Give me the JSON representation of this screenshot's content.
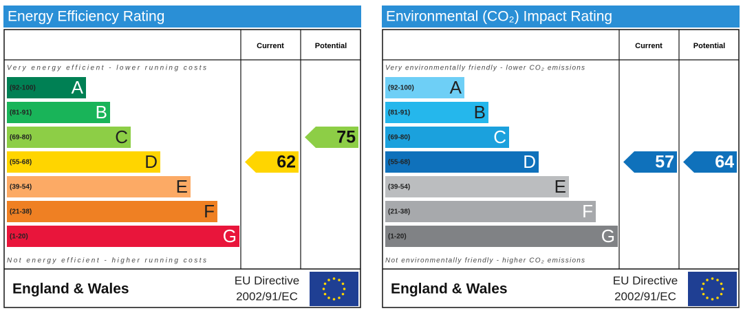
{
  "panels": [
    {
      "title": "Energy Efficiency Rating",
      "header": {
        "current": "Current",
        "potential": "Potential"
      },
      "top_note": "Very energy efficient - lower running costs",
      "bottom_note": "Not energy efficient - higher running costs",
      "bands": [
        {
          "range": "(92-100)",
          "letter": "A",
          "color": "#008054",
          "letter_color": "#ffffff"
        },
        {
          "range": "(81-91)",
          "letter": "B",
          "color": "#19b459",
          "letter_color": "#ffffff"
        },
        {
          "range": "(69-80)",
          "letter": "C",
          "color": "#8dce46",
          "letter_color": "#222222"
        },
        {
          "range": "(55-68)",
          "letter": "D",
          "color": "#ffd500",
          "letter_color": "#222222"
        },
        {
          "range": "(39-54)",
          "letter": "E",
          "color": "#fcaa65",
          "letter_color": "#222222"
        },
        {
          "range": "(21-38)",
          "letter": "F",
          "color": "#ef8023",
          "letter_color": "#222222"
        },
        {
          "range": "(1-20)",
          "letter": "G",
          "color": "#e9153b",
          "letter_color": "#ffffff"
        }
      ],
      "current": 62,
      "potential": 75,
      "arrow_text_color": "#111111",
      "footer": {
        "region": "England & Wales",
        "directive_line1": "EU Directive",
        "directive_line2": "2002/91/EC"
      }
    },
    {
      "title": "Environmental (CO₂) Impact Rating",
      "header": {
        "current": "Current",
        "potential": "Potential"
      },
      "top_note": "Very environmentally friendly - lower CO₂ emissions",
      "bottom_note": "Not environmentally friendly - higher CO₂ emissions",
      "bands": [
        {
          "range": "(92-100)",
          "letter": "A",
          "color": "#6ecff6",
          "letter_color": "#222222"
        },
        {
          "range": "(81-91)",
          "letter": "B",
          "color": "#25b7ec",
          "letter_color": "#222222"
        },
        {
          "range": "(69-80)",
          "letter": "C",
          "color": "#1ba1dd",
          "letter_color": "#ffffff"
        },
        {
          "range": "(55-68)",
          "letter": "D",
          "color": "#0f71bb",
          "letter_color": "#ffffff"
        },
        {
          "range": "(39-54)",
          "letter": "E",
          "color": "#bbbdbf",
          "letter_color": "#222222"
        },
        {
          "range": "(21-38)",
          "letter": "F",
          "color": "#a7a9ac",
          "letter_color": "#ffffff"
        },
        {
          "range": "(1-20)",
          "letter": "G",
          "color": "#808285",
          "letter_color": "#ffffff"
        }
      ],
      "current": 57,
      "potential": 64,
      "arrow_text_color": "#ffffff",
      "footer": {
        "region": "England & Wales",
        "directive_line1": "EU Directive",
        "directive_line2": "2002/91/EC"
      }
    }
  ]
}
